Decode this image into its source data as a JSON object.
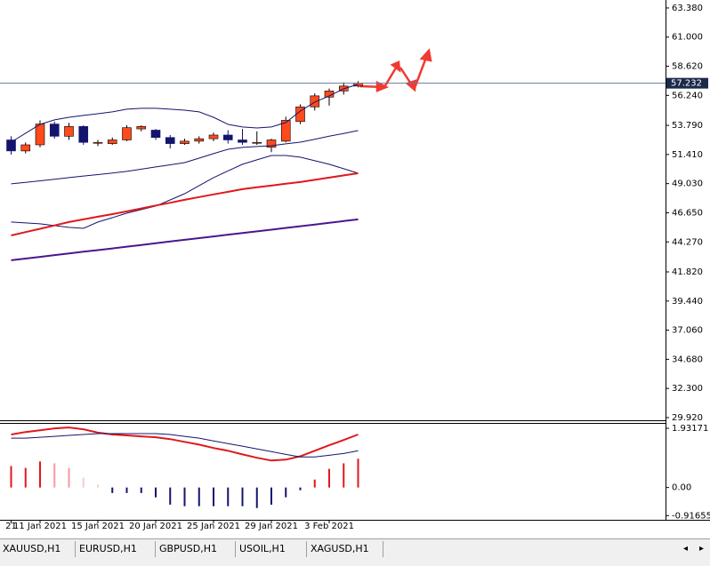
{
  "chart_data": [
    {
      "type": "candlestick",
      "categories": [
        "21",
        null,
        "11 Jan 2021",
        null,
        null,
        null,
        "15 Jan 2021",
        null,
        null,
        null,
        "20 Jan 2021",
        null,
        null,
        null,
        "25 Jan 2021",
        null,
        null,
        null,
        "29 Jan 2021",
        null,
        null,
        null,
        "3 Feb 2021",
        null,
        null
      ],
      "open": [
        52.6,
        51.7,
        52.2,
        53.9,
        52.9,
        53.7,
        52.4,
        52.3,
        52.6,
        53.5,
        53.4,
        52.8,
        52.3,
        52.5,
        52.7,
        53.0,
        52.6,
        52.4,
        52.0,
        52.5,
        54.1,
        55.3,
        56.1,
        56.6,
        57.0
      ],
      "high": [
        52.9,
        52.4,
        54.2,
        54.1,
        54.0,
        53.8,
        52.6,
        52.8,
        53.8,
        53.8,
        53.5,
        53.0,
        52.7,
        52.9,
        53.2,
        53.4,
        53.5,
        53.3,
        52.7,
        54.5,
        55.5,
        56.4,
        56.8,
        57.3,
        57.4
      ],
      "low": [
        51.4,
        51.5,
        52.0,
        52.7,
        52.6,
        52.2,
        52.1,
        52.2,
        52.5,
        53.3,
        52.6,
        51.9,
        52.2,
        52.3,
        52.5,
        52.3,
        52.2,
        52.2,
        51.6,
        52.4,
        53.9,
        55.0,
        55.4,
        56.3,
        56.9
      ],
      "close": [
        51.7,
        52.2,
        53.9,
        52.9,
        53.7,
        52.4,
        52.4,
        52.6,
        53.6,
        53.7,
        52.8,
        52.3,
        52.5,
        52.7,
        53.0,
        52.6,
        52.4,
        52.4,
        52.6,
        54.2,
        55.3,
        56.2,
        56.6,
        57.0,
        57.232
      ],
      "up_color": "#ff4a1c",
      "down_color": "#14146e",
      "lines": [
        {
          "color": "#14146e",
          "values": [
            52.42,
            53.15,
            53.87,
            54.24,
            54.45,
            54.6,
            54.74,
            54.89,
            55.11,
            55.18,
            55.18,
            55.11,
            55.03,
            54.89,
            54.45,
            53.87,
            53.66,
            53.58,
            53.66,
            54.02,
            54.96,
            55.69,
            56.2,
            56.78,
            57.14
          ]
        },
        {
          "color": "#14146e",
          "values": [
            49.01,
            49.14,
            49.26,
            49.39,
            49.52,
            49.65,
            49.77,
            49.9,
            50.03,
            50.21,
            50.39,
            50.57,
            50.75,
            51.11,
            51.48,
            51.84,
            51.99,
            52.06,
            52.13,
            52.28,
            52.42,
            52.66,
            52.9,
            53.13,
            53.37
          ]
        },
        {
          "color": "#14146e",
          "values": [
            45.89,
            45.82,
            45.75,
            45.6,
            45.46,
            45.38,
            45.89,
            46.25,
            46.62,
            46.91,
            47.2,
            47.7,
            48.21,
            48.87,
            49.52,
            50.07,
            50.61,
            50.97,
            51.33,
            51.33,
            51.19,
            50.9,
            50.61,
            50.25,
            49.88
          ]
        },
        {
          "color": "#e0181b",
          "values": [
            44.8,
            45.07,
            45.34,
            45.62,
            45.89,
            46.11,
            46.33,
            46.54,
            46.76,
            47.0,
            47.24,
            47.47,
            47.71,
            47.93,
            48.15,
            48.36,
            48.58,
            48.73,
            48.87,
            49.02,
            49.16,
            49.34,
            49.52,
            49.7,
            49.88
          ]
        },
        {
          "color": "#4b1590",
          "values": [
            42.77,
            42.91,
            43.05,
            43.19,
            43.33,
            43.47,
            43.6,
            43.74,
            43.88,
            44.02,
            44.16,
            44.3,
            44.44,
            44.58,
            44.72,
            44.86,
            45.0,
            45.13,
            45.27,
            45.41,
            45.55,
            45.69,
            45.83,
            45.97,
            46.11
          ]
        }
      ],
      "current_price": 57.232,
      "ylim": [
        29.7,
        64.03
      ],
      "yticks": [
        {
          "value": 63.38,
          "label": "63.380"
        },
        {
          "value": 61,
          "label": "61.000"
        },
        {
          "value": 58.62,
          "label": "58.620"
        },
        {
          "value": 56.24,
          "label": "56.240"
        },
        {
          "value": 53.79,
          "label": "53.790"
        },
        {
          "value": 51.41,
          "label": "51.410"
        },
        {
          "value": 49.03,
          "label": "49.030"
        },
        {
          "value": 46.65,
          "label": "46.650"
        },
        {
          "value": 44.27,
          "label": "44.270"
        },
        {
          "value": 41.82,
          "label": "41.820"
        },
        {
          "value": 39.44,
          "label": "39.440"
        },
        {
          "value": 37.06,
          "label": "37.060"
        },
        {
          "value": 34.68,
          "label": "34.680"
        },
        {
          "value": 32.3,
          "label": "32.300"
        },
        {
          "value": 29.92,
          "label": "29.920"
        }
      ]
    },
    {
      "type": "macd",
      "values": [
        0.7,
        0.64,
        0.85,
        0.79,
        0.64,
        0.32,
        0.09,
        -0.18,
        -0.18,
        -0.18,
        -0.32,
        -0.56,
        -0.61,
        -0.61,
        -0.61,
        -0.61,
        -0.61,
        -0.67,
        -0.56,
        -0.32,
        -0.09,
        0.26,
        0.61,
        0.79,
        0.94
      ],
      "bar_colors": [
        "#e0181b",
        "#e0181b",
        "#e0181b",
        "#f59aa0",
        "#f59aa0",
        "#fbc8cc",
        "#fbc8cc",
        "#14146e",
        "#14146e",
        "#14146e",
        "#14146e",
        "#14146e",
        "#14146e",
        "#14146e",
        "#14146e",
        "#14146e",
        "#14146e",
        "#14146e",
        "#14146e",
        "#14146e",
        "#14146e",
        "#e0181b",
        "#e0181b",
        "#e0181b",
        "#e0181b"
      ],
      "lines": [
        {
          "color": "#e0181b",
          "values": [
            1.73,
            1.81,
            1.87,
            1.93,
            1.96,
            1.9,
            1.79,
            1.73,
            1.7,
            1.67,
            1.64,
            1.58,
            1.49,
            1.4,
            1.29,
            1.2,
            1.08,
            0.97,
            0.88,
            0.91,
            1.02,
            1.2,
            1.38,
            1.55,
            1.73
          ]
        },
        {
          "color": "#14146e",
          "values": [
            1.61,
            1.61,
            1.64,
            1.67,
            1.7,
            1.73,
            1.76,
            1.76,
            1.76,
            1.76,
            1.76,
            1.73,
            1.67,
            1.61,
            1.52,
            1.43,
            1.35,
            1.26,
            1.17,
            1.08,
            1.0,
            1.0,
            1.05,
            1.11,
            1.2
          ]
        }
      ],
      "ylim": [
        -1.054,
        2.078
      ],
      "yticks": [
        1.93171,
        {
          "value": 0,
          "label": "0.00"
        },
        -0.91655
      ]
    }
  ],
  "tabs": [
    "XAUUSD,H1",
    "EURUSD,H1",
    "GBPUSD,H1",
    "USOIL,H1",
    "XAGUSD,H1"
  ]
}
